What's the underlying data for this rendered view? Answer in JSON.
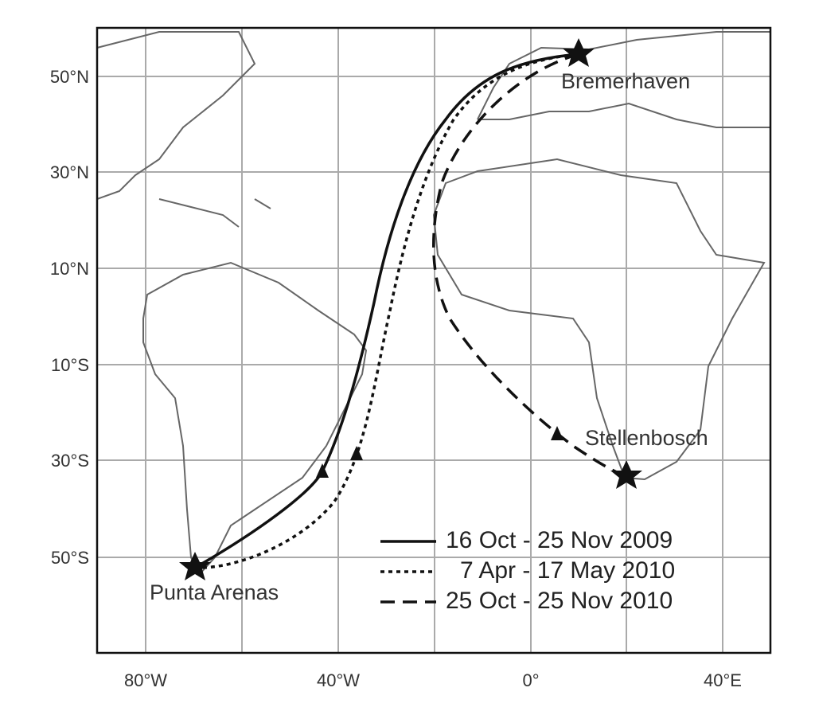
{
  "map": {
    "lat_labels": [
      "50°N",
      "30°N",
      "10°N",
      "10°S",
      "30°S",
      "50°S"
    ],
    "lon_labels": [
      "80°W",
      "40°W",
      "0°",
      "40°E"
    ],
    "places": [
      "Bremerhaven",
      "Stellenbosch",
      "Punta Arenas"
    ],
    "legend": [
      "16 Oct - 25 Nov 2009",
      "7 Apr - 17 May 2010",
      "25 Oct - 25 Nov 2010"
    ]
  }
}
